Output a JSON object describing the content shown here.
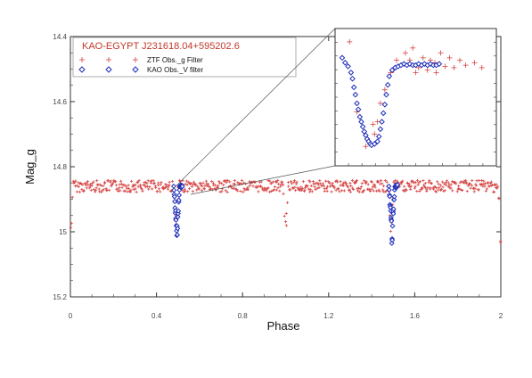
{
  "chart_data": {
    "type": "scatter",
    "title": "",
    "xlabel": "Phase",
    "ylabel": "Mag_g",
    "xlim": [
      0,
      2
    ],
    "ylim": [
      15.2,
      14.4
    ],
    "y_inverted": true,
    "xticks": [
      "0",
      "0.4",
      "0.8",
      "1.2",
      "1.6",
      "2"
    ],
    "yticks": [
      "14.4",
      "14.6",
      "14.8",
      "15",
      "15.2"
    ],
    "legend": {
      "title": "KAO-EGYPT J231618.04+595202.6",
      "position": "top-left",
      "entries": [
        "ZTF Obs._g Filter",
        "KAO Obs._V filter"
      ]
    },
    "series": [
      {
        "name": "ZTF Obs._g Filter",
        "marker": "plus",
        "color": "#d64545",
        "baseline_mag": 14.86,
        "scatter_mag": 0.018,
        "eclipses": [
          {
            "phase": 0.0,
            "min_mag": 15.07
          },
          {
            "phase": 0.49,
            "min_mag": 15.05
          },
          {
            "phase": 1.0,
            "min_mag": 15.07
          },
          {
            "phase": 1.49,
            "min_mag": 15.05
          },
          {
            "phase": 2.0,
            "min_mag": 15.07
          }
        ]
      },
      {
        "name": "KAO Obs._V filter",
        "marker": "diamond",
        "color": "#1e2fb8",
        "segments": [
          {
            "phase_range": [
              0.48,
              0.52
            ],
            "mag_range": [
              14.86,
              15.05
            ]
          },
          {
            "phase_range": [
              1.48,
              1.52
            ],
            "mag_range": [
              14.86,
              15.05
            ]
          }
        ]
      }
    ],
    "inset": {
      "description_zoom_of": "first eclipse near phase 0.5",
      "ztf_color": "#d64545",
      "kao_color": "#1e2fb8",
      "kao_points": [
        [
          0.0,
          0.18
        ],
        [
          0.02,
          0.22
        ],
        [
          0.04,
          0.25
        ],
        [
          0.06,
          0.3
        ],
        [
          0.07,
          0.35
        ],
        [
          0.08,
          0.42
        ],
        [
          0.09,
          0.48
        ],
        [
          0.1,
          0.55
        ],
        [
          0.11,
          0.6
        ],
        [
          0.12,
          0.66
        ],
        [
          0.13,
          0.7
        ],
        [
          0.14,
          0.74
        ],
        [
          0.15,
          0.78
        ],
        [
          0.16,
          0.81
        ],
        [
          0.17,
          0.84
        ],
        [
          0.18,
          0.86
        ],
        [
          0.19,
          0.88
        ],
        [
          0.2,
          0.89
        ],
        [
          0.22,
          0.88
        ],
        [
          0.24,
          0.86
        ],
        [
          0.25,
          0.82
        ],
        [
          0.26,
          0.76
        ],
        [
          0.27,
          0.7
        ],
        [
          0.28,
          0.63
        ],
        [
          0.29,
          0.56
        ],
        [
          0.3,
          0.48
        ],
        [
          0.31,
          0.4
        ],
        [
          0.32,
          0.33
        ],
        [
          0.34,
          0.28
        ],
        [
          0.36,
          0.26
        ],
        [
          0.38,
          0.25
        ],
        [
          0.4,
          0.24
        ],
        [
          0.42,
          0.23
        ],
        [
          0.44,
          0.24
        ],
        [
          0.46,
          0.23
        ],
        [
          0.48,
          0.24
        ],
        [
          0.5,
          0.24
        ],
        [
          0.52,
          0.23
        ],
        [
          0.54,
          0.24
        ],
        [
          0.56,
          0.23
        ],
        [
          0.58,
          0.24
        ],
        [
          0.6,
          0.23
        ],
        [
          0.62,
          0.24
        ],
        [
          0.64,
          0.24
        ],
        [
          0.66,
          0.23
        ]
      ],
      "ztf_points": [
        [
          0.05,
          0.05
        ],
        [
          0.1,
          0.62
        ],
        [
          0.16,
          0.9
        ],
        [
          0.21,
          0.72
        ],
        [
          0.26,
          0.55
        ],
        [
          0.29,
          0.44
        ],
        [
          0.33,
          0.3
        ],
        [
          0.37,
          0.2
        ],
        [
          0.4,
          0.24
        ],
        [
          0.43,
          0.14
        ],
        [
          0.46,
          0.2
        ],
        [
          0.48,
          0.1
        ],
        [
          0.52,
          0.26
        ],
        [
          0.55,
          0.18
        ],
        [
          0.58,
          0.28
        ],
        [
          0.6,
          0.2
        ],
        [
          0.63,
          0.22
        ],
        [
          0.67,
          0.14
        ],
        [
          0.7,
          0.25
        ],
        [
          0.73,
          0.18
        ],
        [
          0.76,
          0.26
        ],
        [
          0.8,
          0.2
        ],
        [
          0.84,
          0.24
        ],
        [
          0.9,
          0.22
        ],
        [
          0.95,
          0.26
        ],
        [
          0.22,
          0.8
        ],
        [
          0.24,
          0.7
        ],
        [
          0.35,
          0.28
        ],
        [
          0.5,
          0.3
        ],
        [
          0.64,
          0.3
        ]
      ]
    }
  }
}
